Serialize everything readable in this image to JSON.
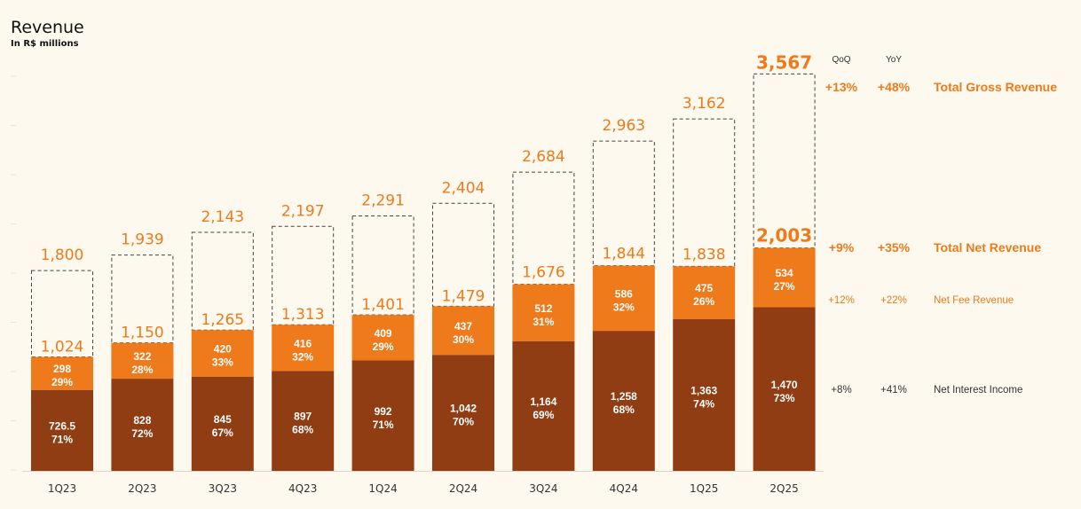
{
  "header": {
    "title": "Revenue",
    "subtitle": "In R$ millions"
  },
  "growth_table": {
    "col_qoq": "QoQ",
    "col_yoy": "YoY",
    "rows": [
      {
        "qoq": "+13%",
        "yoy": "+48%",
        "label": "Total Gross Revenue"
      },
      {
        "qoq": "+9%",
        "yoy": "+35%",
        "label": "Total Net Revenue"
      },
      {
        "qoq": "+12%",
        "yoy": "+22%",
        "label": "Net Fee Revenue"
      },
      {
        "qoq": "+8%",
        "yoy": "+41%",
        "label": "Net Interest Income"
      }
    ]
  },
  "colors": {
    "background": "#FEF9EF",
    "net_interest_income": "#913D14",
    "net_fee_revenue": "#EE7A1B",
    "total_label": "#EE7A1B",
    "bar_label_text": "#FFFFFF",
    "gross_outline": "#444444"
  },
  "chart_data": {
    "type": "bar",
    "title": "Revenue",
    "subtitle": "In R$ millions",
    "stacked": true,
    "categories": [
      "1Q23",
      "2Q23",
      "3Q23",
      "4Q23",
      "1Q24",
      "2Q24",
      "3Q24",
      "4Q24",
      "1Q25",
      "2Q25"
    ],
    "series": [
      {
        "name": "Net Interest Income",
        "values": [
          726.5,
          828,
          845,
          897,
          992,
          1042,
          1164,
          1258,
          1363,
          1470
        ],
        "labels": [
          "726.5",
          "828",
          "845",
          "897",
          "992",
          "1,042",
          "1,164",
          "1,258",
          "1,363",
          "1,470"
        ],
        "pct": [
          "71%",
          "72%",
          "67%",
          "68%",
          "71%",
          "70%",
          "69%",
          "68%",
          "74%",
          "73%"
        ]
      },
      {
        "name": "Net Fee Revenue",
        "values": [
          298,
          322,
          420,
          416,
          409,
          437,
          512,
          586,
          475,
          534
        ],
        "labels": [
          "298",
          "322",
          "420",
          "416",
          "409",
          "437",
          "512",
          "586",
          "475",
          "534"
        ],
        "pct": [
          "29%",
          "28%",
          "33%",
          "32%",
          "29%",
          "30%",
          "31%",
          "32%",
          "26%",
          "27%"
        ]
      }
    ],
    "total_net_revenue": {
      "values": [
        1024,
        1150,
        1265,
        1313,
        1401,
        1479,
        1676,
        1844,
        1838,
        2003
      ],
      "labels": [
        "1,024",
        "1,150",
        "1,265",
        "1,313",
        "1,401",
        "1,479",
        "1,676",
        "1,844",
        "1,838",
        "2,003"
      ]
    },
    "total_gross_revenue": {
      "values": [
        1800,
        1939,
        2143,
        2197,
        2291,
        2404,
        2684,
        2963,
        3162,
        3567
      ],
      "labels": [
        "1,800",
        "1,939",
        "2,143",
        "2,197",
        "2,291",
        "2,404",
        "2,684",
        "2,963",
        "3,162",
        "3,567"
      ]
    },
    "ylim": [
      0,
      3800
    ],
    "xlabel": "",
    "ylabel": ""
  }
}
